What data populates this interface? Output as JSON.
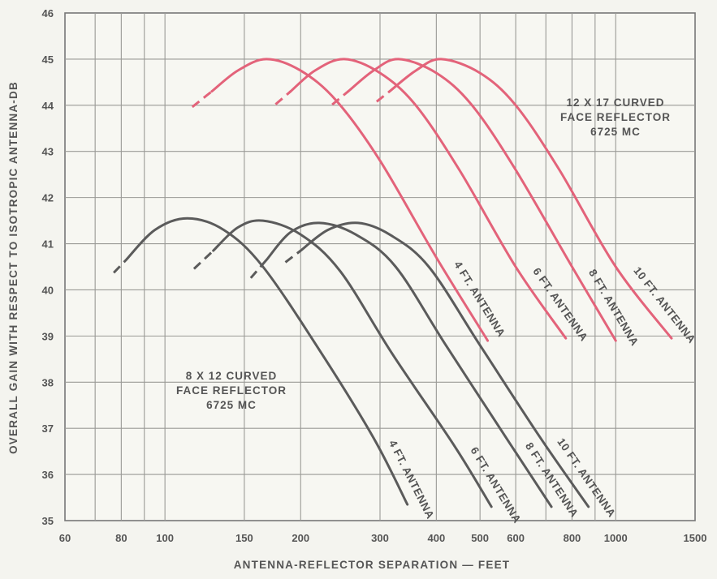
{
  "chart_data": {
    "type": "line",
    "title": "",
    "xlabel": "ANTENNA-REFLECTOR SEPARATION — FEET",
    "ylabel": "OVERALL GAIN WITH RESPECT TO ISOTROPIC ANTENNA-DB",
    "x_scale": "log",
    "xlim": [
      60,
      1500
    ],
    "ylim": [
      35,
      46
    ],
    "x_ticks": [
      60,
      80,
      100,
      150,
      200,
      300,
      400,
      500,
      600,
      800,
      1000,
      1500
    ],
    "x_tick_labels": [
      "60",
      "80",
      "100",
      "150",
      "200",
      "300",
      "400",
      "500",
      "600",
      "800",
      "1000",
      "1500"
    ],
    "x_minor_grid": [
      70,
      90,
      700,
      900
    ],
    "y_ticks": [
      35,
      36,
      37,
      38,
      39,
      40,
      41,
      42,
      43,
      44,
      45,
      46
    ],
    "y_tick_labels": [
      "35",
      "36",
      "37",
      "38",
      "39",
      "40",
      "41",
      "42",
      "43",
      "44",
      "45",
      "46"
    ],
    "grid": true,
    "legend": "none",
    "groups": [
      {
        "annotation": [
          "12 X 17 CURVED",
          "FACE REFLECTOR",
          "6725 MC"
        ],
        "color": "#e3637a",
        "series": [
          {
            "name": "4 FT. ANTENNA",
            "dashed_x": [
              115,
              127
            ],
            "points": [
              [
                127,
                44.3
              ],
              [
                145,
                44.75
              ],
              [
                168,
                45.0
              ],
              [
                200,
                44.75
              ],
              [
                240,
                44.1
              ],
              [
                300,
                42.8
              ],
              [
                400,
                40.7
              ],
              [
                520,
                38.9
              ]
            ]
          },
          {
            "name": "6 FT. ANTENNA",
            "dashed_x": [
              176,
              190
            ],
            "points": [
              [
                190,
                44.3
              ],
              [
                215,
                44.75
              ],
              [
                250,
                45.0
              ],
              [
                300,
                44.7
              ],
              [
                360,
                44.0
              ],
              [
                450,
                42.6
              ],
              [
                600,
                40.5
              ],
              [
                775,
                38.95
              ]
            ]
          },
          {
            "name": "8 FT. ANTENNA",
            "dashed_x": [
              235,
              255
            ],
            "points": [
              [
                255,
                44.3
              ],
              [
                290,
                44.75
              ],
              [
                330,
                45.0
              ],
              [
                400,
                44.7
              ],
              [
                480,
                44.0
              ],
              [
                600,
                42.6
              ],
              [
                800,
                40.5
              ],
              [
                1000,
                38.9
              ]
            ]
          },
          {
            "name": "10 FT. ANTENNA",
            "dashed_x": [
              295,
              315
            ],
            "points": [
              [
                315,
                44.3
              ],
              [
                360,
                44.75
              ],
              [
                410,
                45.0
              ],
              [
                500,
                44.7
              ],
              [
                600,
                44.0
              ],
              [
                750,
                42.6
              ],
              [
                1000,
                40.5
              ],
              [
                1330,
                38.95
              ]
            ]
          }
        ]
      },
      {
        "annotation": [
          "8 X 12 CURVED",
          "FACE REFLECTOR",
          "6725 MC"
        ],
        "color": "#5b5b5b",
        "series": [
          {
            "name": "4 FT. ANTENNA",
            "dashed_x": [
              77,
              82
            ],
            "points": [
              [
                82,
                40.65
              ],
              [
                95,
                41.3
              ],
              [
                112,
                41.55
              ],
              [
                135,
                41.3
              ],
              [
                165,
                40.5
              ],
              [
                220,
                38.7
              ],
              [
                290,
                36.8
              ],
              [
                345,
                35.35
              ]
            ]
          },
          {
            "name": "6 FT. ANTENNA",
            "dashed_x": [
              116,
              128
            ],
            "points": [
              [
                128,
                40.85
              ],
              [
                145,
                41.35
              ],
              [
                165,
                41.5
              ],
              [
                200,
                41.2
              ],
              [
                245,
                40.4
              ],
              [
                320,
                38.6
              ],
              [
                440,
                36.6
              ],
              [
                530,
                35.3
              ]
            ]
          },
          {
            "name": "8 FT. ANTENNA",
            "dashed_x": [
              155,
              168
            ],
            "points": [
              [
                168,
                40.65
              ],
              [
                190,
                41.25
              ],
              [
                220,
                41.45
              ],
              [
                265,
                41.2
              ],
              [
                325,
                40.5
              ],
              [
                420,
                38.8
              ],
              [
                580,
                36.7
              ],
              [
                720,
                35.3
              ]
            ]
          },
          {
            "name": "10 FT. ANTENNA",
            "dashed_x": [
              185,
              200
            ],
            "points": [
              [
                200,
                40.85
              ],
              [
                230,
                41.3
              ],
              [
                268,
                41.45
              ],
              [
                315,
                41.2
              ],
              [
                385,
                40.5
              ],
              [
                500,
                38.8
              ],
              [
                680,
                36.8
              ],
              [
                870,
                35.3
              ]
            ]
          }
        ]
      }
    ]
  }
}
